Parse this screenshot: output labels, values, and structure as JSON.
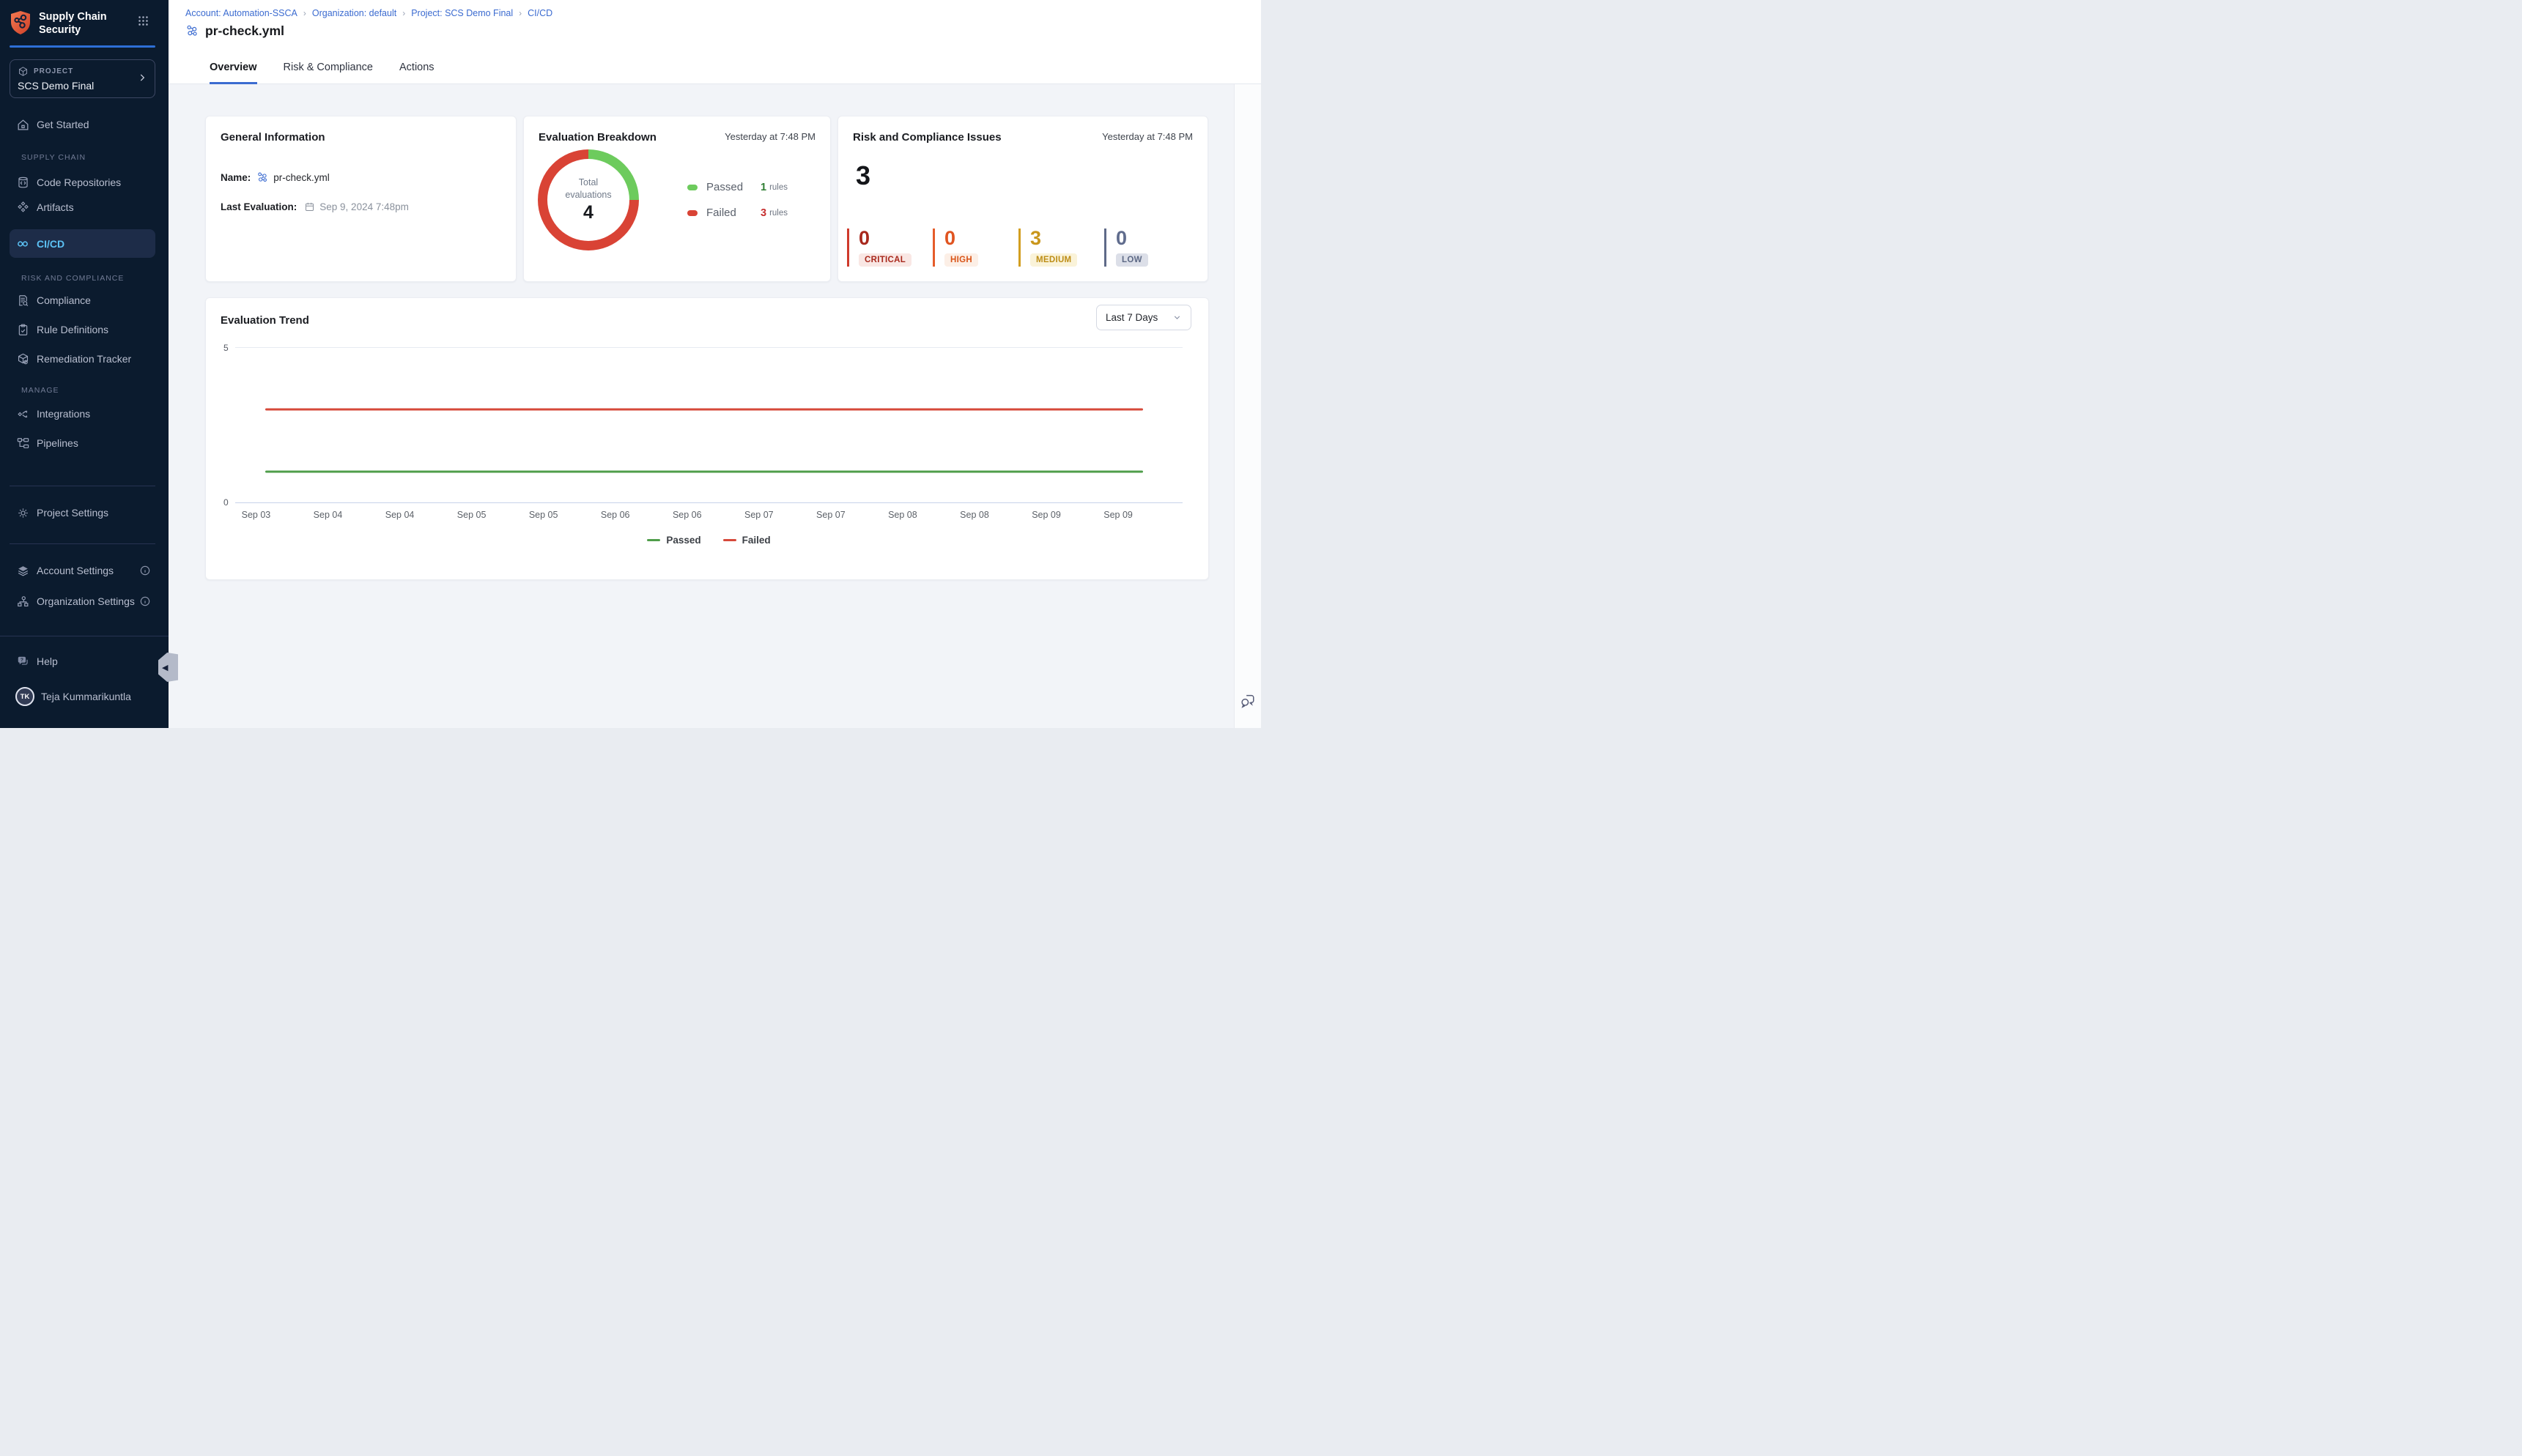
{
  "colors": {
    "sidebar_bg": "#0b1b2e",
    "sidebar_active_bg": "#1d2c48",
    "sidebar_active_text": "#5cc2f5",
    "accent_blue": "#3b6bd0",
    "passed_green": "#6dcb5d",
    "failed_red": "#d94335",
    "line_green": "#4f9e4a",
    "line_red": "#d6493a"
  },
  "sidebar": {
    "product_line1": "Supply Chain",
    "product_line2": "Security",
    "project": {
      "label": "PROJECT",
      "name": "SCS Demo Final"
    },
    "get_started": {
      "label": "Get Started"
    },
    "sections": [
      {
        "title": "SUPPLY CHAIN",
        "items": [
          {
            "label": "Code Repositories"
          },
          {
            "label": "Artifacts"
          },
          {
            "label": "CI/CD",
            "active": true
          }
        ]
      },
      {
        "title": "RISK AND COMPLIANCE",
        "items": [
          {
            "label": "Compliance"
          },
          {
            "label": "Rule Definitions"
          },
          {
            "label": "Remediation Tracker"
          }
        ]
      },
      {
        "title": "MANAGE",
        "items": [
          {
            "label": "Integrations"
          },
          {
            "label": "Pipelines"
          }
        ]
      }
    ],
    "project_settings": {
      "label": "Project Settings"
    },
    "account_settings": {
      "label": "Account Settings"
    },
    "organization_settings": {
      "label": "Organization Settings"
    },
    "help": {
      "label": "Help"
    },
    "user": {
      "name": "Teja Kummarikuntla",
      "initials": "TK"
    }
  },
  "header": {
    "breadcrumb": [
      {
        "label": "Account: Automation-SSCA"
      },
      {
        "label": "Organization: default"
      },
      {
        "label": "Project: SCS Demo Final"
      },
      {
        "label": "CI/CD"
      }
    ],
    "title": "pr-check.yml",
    "tabs": [
      {
        "label": "Overview",
        "active": true
      },
      {
        "label": "Risk & Compliance"
      },
      {
        "label": "Actions"
      }
    ]
  },
  "cards": {
    "general": {
      "title": "General Information",
      "name_label": "Name:",
      "name_value": "pr-check.yml",
      "last_eval_label": "Last Evaluation:",
      "last_eval_value": "Sep 9, 2024 7:48pm"
    },
    "breakdown": {
      "title": "Evaluation Breakdown",
      "timestamp": "Yesterday at 7:48 PM",
      "center_label": "Total evaluations",
      "total": "4",
      "legend": [
        {
          "label": "Passed",
          "count": "1",
          "unit": "rules",
          "swatch": "#6dcb5d",
          "count_color": "#2e7d32"
        },
        {
          "label": "Failed",
          "count": "3",
          "unit": "rules",
          "swatch": "#d94335",
          "count_color": "#c62e2e"
        }
      ]
    },
    "risk": {
      "title": "Risk and Compliance Issues",
      "timestamp": "Yesterday at 7:48 PM",
      "total": "3",
      "severities": [
        {
          "label": "CRITICAL",
          "count": "0",
          "bar": "#cf3a2c",
          "num": "#a8281c",
          "badge_bg": "#f9e7e4",
          "badge_text": "#a8281c"
        },
        {
          "label": "HIGH",
          "count": "0",
          "bar": "#e55c2a",
          "num": "#e05420",
          "badge_bg": "#fcefe6",
          "badge_text": "#d95418"
        },
        {
          "label": "MEDIUM",
          "count": "3",
          "bar": "#d29e20",
          "num": "#c9961b",
          "badge_bg": "#faf3d9",
          "badge_text": "#bd8d15"
        },
        {
          "label": "LOW",
          "count": "0",
          "bar": "#5f6a88",
          "num": "#606c8d",
          "badge_bg": "#dcdfe8",
          "badge_text": "#5d6985"
        }
      ]
    }
  },
  "trend": {
    "title": "Evaluation Trend",
    "range_label": "Last 7 Days"
  },
  "chart_data": [
    {
      "type": "line",
      "title": "Evaluation Trend",
      "x": [
        "Sep 03",
        "Sep 04",
        "Sep 04",
        "Sep 05",
        "Sep 05",
        "Sep 06",
        "Sep 06",
        "Sep 07",
        "Sep 07",
        "Sep 08",
        "Sep 08",
        "Sep 09",
        "Sep 09"
      ],
      "series": [
        {
          "name": "Passed",
          "color": "#4f9e4a",
          "values": [
            1,
            1,
            1,
            1,
            1,
            1,
            1,
            1,
            1,
            1,
            1,
            1,
            1
          ]
        },
        {
          "name": "Failed",
          "color": "#d6493a",
          "values": [
            3,
            3,
            3,
            3,
            3,
            3,
            3,
            3,
            3,
            3,
            3,
            3,
            3
          ]
        }
      ],
      "ylim": [
        0,
        5
      ],
      "yticks": [
        0,
        5
      ],
      "legend_position": "bottom",
      "grid": "gridline at y=5 and baseline at y=0 only"
    },
    {
      "type": "pie",
      "title": "Evaluation Breakdown",
      "labels": [
        "Passed",
        "Failed"
      ],
      "values": [
        1,
        3
      ],
      "colors": [
        "#6dcb5d",
        "#d94335"
      ],
      "center_label": "Total evaluations",
      "center_value": 4
    }
  ]
}
